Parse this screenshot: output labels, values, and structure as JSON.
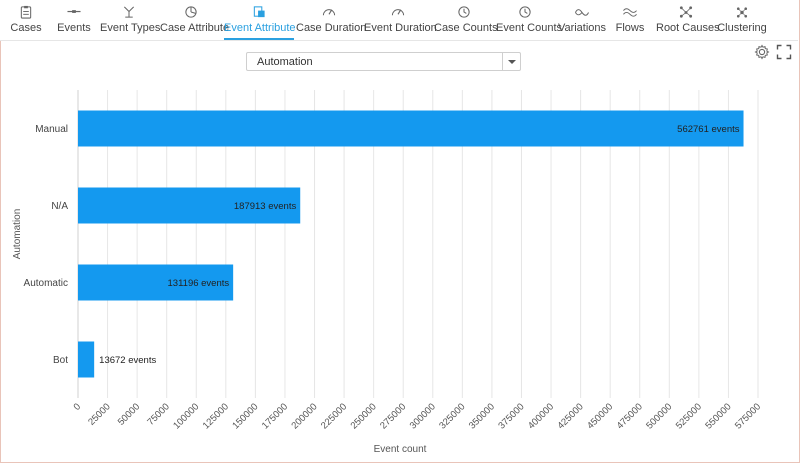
{
  "toolbar": {
    "tabs": [
      {
        "label": "Cases",
        "icon": "clipboard-icon",
        "active": false
      },
      {
        "label": "Events",
        "icon": "events-icon",
        "active": false
      },
      {
        "label": "Event Types",
        "icon": "event-types-icon",
        "active": false
      },
      {
        "label": "Case Attribute",
        "icon": "pie-icon",
        "active": false
      },
      {
        "label": "Event Attribute",
        "icon": "event-attribute-icon",
        "active": true
      },
      {
        "label": "Case Duration",
        "icon": "gauge-icon",
        "active": false
      },
      {
        "label": "Event Duration",
        "icon": "gauge-icon",
        "active": false
      },
      {
        "label": "Case Counts",
        "icon": "clock-icon",
        "active": false
      },
      {
        "label": "Event Counts",
        "icon": "clock-icon",
        "active": false
      },
      {
        "label": "Variations",
        "icon": "variations-icon",
        "active": false
      },
      {
        "label": "Flows",
        "icon": "flows-icon",
        "active": false
      },
      {
        "label": "Root Causes",
        "icon": "root-causes-icon",
        "active": false
      },
      {
        "label": "Clustering",
        "icon": "clustering-icon",
        "active": false
      }
    ]
  },
  "settings_icon": "gear-icon",
  "fullscreen_icon": "fullscreen-icon",
  "accent_color": "#2aa0e0",
  "bar_color": "#1499ef",
  "attribute_select": {
    "value": "Automation"
  },
  "chart_data": {
    "type": "bar",
    "orientation": "horizontal",
    "categories": [
      "Manual",
      "N/A",
      "Automatic",
      "Bot"
    ],
    "values": [
      562761,
      187913,
      131196,
      13672
    ],
    "data_labels": [
      "562761 events",
      "187913 events",
      "131196 events",
      "13672 events"
    ],
    "xlabel": "Event count",
    "ylabel": "Automation",
    "xlim": [
      0,
      575000
    ],
    "xticks": [
      0,
      25000,
      50000,
      75000,
      100000,
      125000,
      150000,
      175000,
      200000,
      225000,
      250000,
      275000,
      300000,
      325000,
      350000,
      375000,
      400000,
      425000,
      450000,
      475000,
      500000,
      525000,
      550000,
      575000
    ],
    "grid": "vertical",
    "legend": "none"
  }
}
